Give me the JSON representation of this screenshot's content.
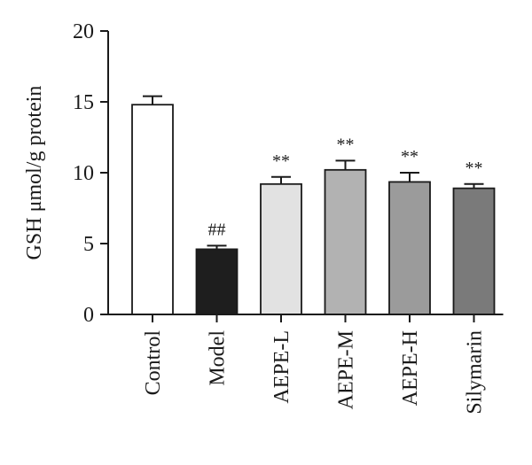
{
  "chart_data": {
    "type": "bar",
    "title": "",
    "xlabel": "",
    "ylabel": "GSH μmol/g protein",
    "ylim": [
      0,
      20
    ],
    "yticks": [
      0,
      5,
      10,
      15,
      20
    ],
    "grid": false,
    "categories": [
      "Control",
      "Model",
      "AEPE-L",
      "AEPE-M",
      "AEPE-H",
      "Silymarin"
    ],
    "values": [
      14.8,
      4.6,
      9.2,
      10.2,
      9.35,
      8.9
    ],
    "errors": [
      0.6,
      0.25,
      0.5,
      0.65,
      0.65,
      0.3
    ],
    "significance": [
      "",
      "##",
      "**",
      "**",
      "**",
      "**"
    ],
    "bar_colors": [
      "#ffffff",
      "#1e1e1e",
      "#e2e2e2",
      "#b2b2b2",
      "#9b9b9b",
      "#7a7a7a"
    ],
    "edge_color": "#1a1a1a"
  }
}
